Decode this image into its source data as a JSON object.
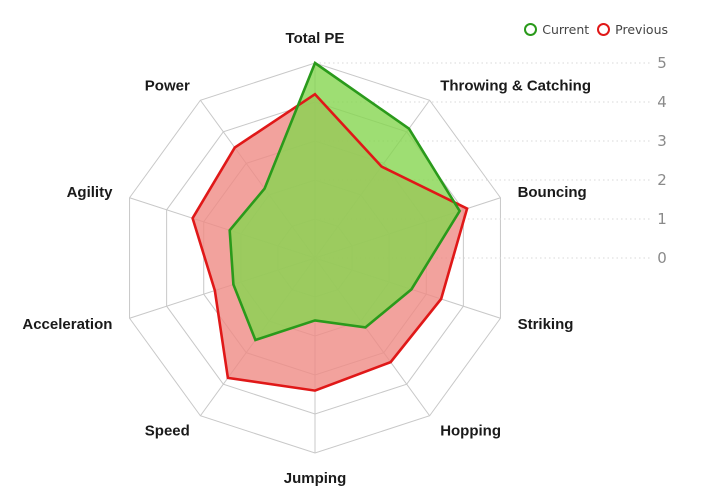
{
  "chart_data": {
    "type": "radar",
    "title": "",
    "axes": [
      "Total PE",
      "Throwing & Catching",
      "Bouncing",
      "Striking",
      "Hopping",
      "Jumping",
      "Speed",
      "Acceleration",
      "Agility",
      "Power"
    ],
    "scale_ticks": [
      "0",
      "1",
      "2",
      "3",
      "4",
      "5"
    ],
    "rlim": [
      0,
      5
    ],
    "grid": true,
    "legend_position": "top-right",
    "series": [
      {
        "name": "Current",
        "stroke": "#2a9a1b",
        "fill": "#86d650",
        "values": [
          5.0,
          4.1,
          3.9,
          2.6,
          2.2,
          1.6,
          2.6,
          2.2,
          2.3,
          2.2
        ]
      },
      {
        "name": "Previous",
        "stroke": "#e01818",
        "fill": "#ef8b85",
        "values": [
          4.2,
          2.9,
          4.1,
          3.4,
          3.3,
          3.4,
          3.8,
          2.7,
          3.3,
          3.5
        ]
      }
    ]
  }
}
